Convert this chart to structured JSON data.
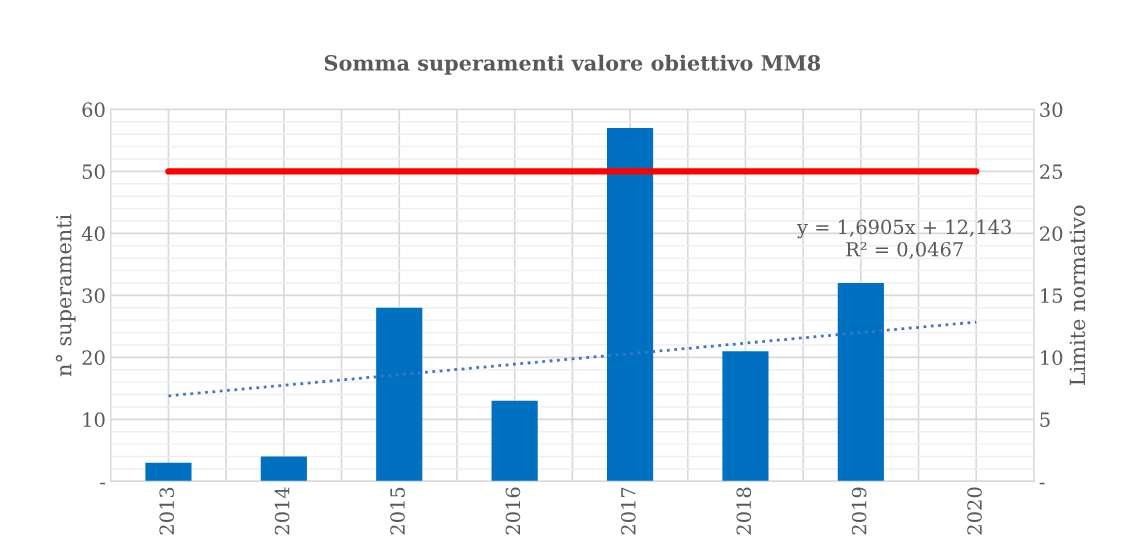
{
  "chart_data": {
    "type": "bar",
    "title": "Somma superamenti valore obiettivo MM8",
    "ylabel": "n° superamenti",
    "y2label": "Limite normativo",
    "categories": [
      "2013",
      "2014",
      "2015",
      "2016",
      "2017",
      "2018",
      "2019",
      "2020"
    ],
    "series": [
      {
        "color": "#0070c0",
        "values": [
          3,
          4,
          28,
          13,
          57,
          21,
          32,
          null
        ]
      },
      {
        "type": "line",
        "axis": "y2",
        "color": "#ff0000",
        "values": [
          25,
          25,
          25,
          25,
          25,
          25,
          25,
          25
        ]
      },
      {
        "type": "line",
        "color": "#4472c4",
        "line_style": "dotted",
        "values": [
          13.8,
          15.5,
          17.2,
          18.9,
          20.6,
          22.3,
          24.0,
          25.7
        ]
      }
    ],
    "annotations": [
      "y = 1,6905x + 12,143",
      "R² = 0,0467"
    ],
    "ylim": [
      0,
      60
    ],
    "yticks": [
      {
        "value": 0,
        "label": "-"
      },
      10,
      20,
      30,
      40,
      50,
      60
    ],
    "y2lim": [
      0,
      30
    ],
    "y2ticks": [
      {
        "value": 0,
        "label": "-"
      },
      5,
      10,
      15,
      20,
      25,
      30
    ],
    "grid": true,
    "legend": false
  }
}
